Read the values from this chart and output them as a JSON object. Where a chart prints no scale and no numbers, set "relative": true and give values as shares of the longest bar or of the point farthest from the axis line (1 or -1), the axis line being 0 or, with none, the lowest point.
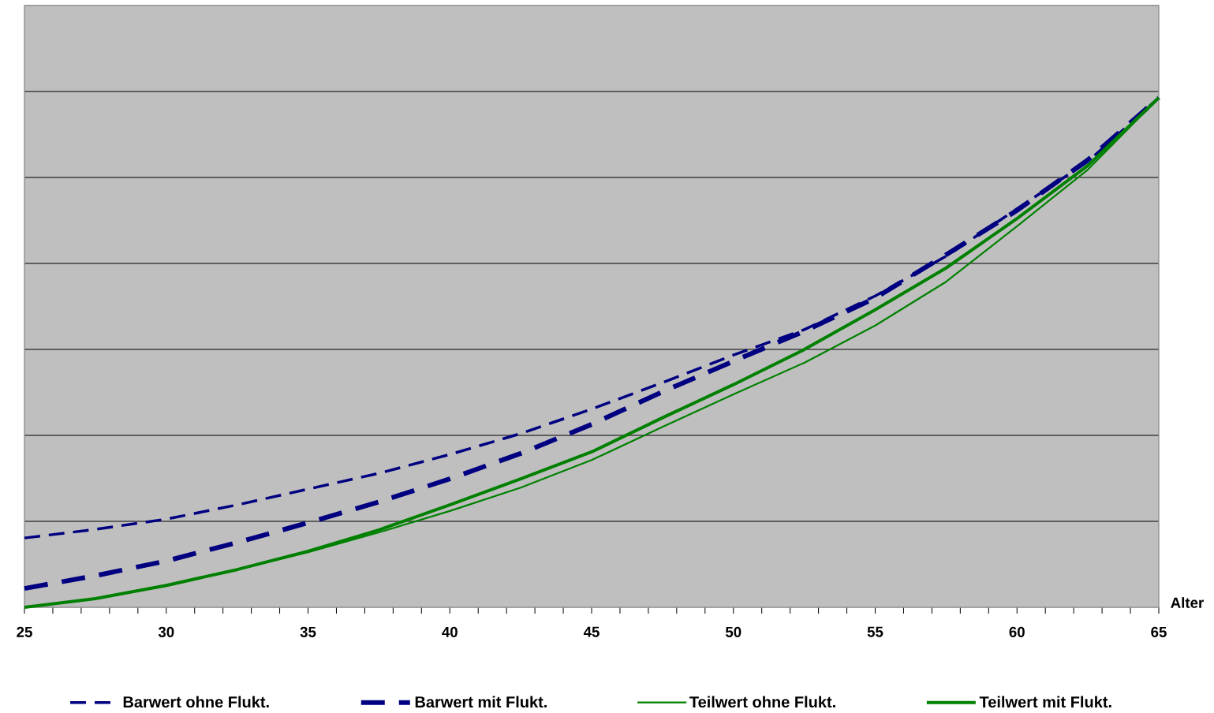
{
  "chart_data": {
    "type": "line",
    "relative": true,
    "xlabel": "Alter",
    "x": [
      25,
      27.5,
      30,
      32.5,
      35,
      37.5,
      40,
      42.5,
      45,
      47.5,
      50,
      52.5,
      55,
      57.5,
      60,
      62.5,
      65
    ],
    "xlim": [
      25,
      65
    ],
    "xticks": [
      25,
      {
        "value": 26,
        "label": null
      },
      {
        "value": 27,
        "label": null
      },
      {
        "value": 28,
        "label": null
      },
      {
        "value": 29,
        "label": null
      },
      30,
      {
        "value": 31,
        "label": null
      },
      {
        "value": 32,
        "label": null
      },
      {
        "value": 33,
        "label": null
      },
      {
        "value": 34,
        "label": null
      },
      35,
      {
        "value": 36,
        "label": null
      },
      {
        "value": 37,
        "label": null
      },
      {
        "value": 38,
        "label": null
      },
      {
        "value": 39,
        "label": null
      },
      40,
      {
        "value": 41,
        "label": null
      },
      {
        "value": 42,
        "label": null
      },
      {
        "value": 43,
        "label": null
      },
      {
        "value": 44,
        "label": null
      },
      45,
      {
        "value": 46,
        "label": null
      },
      {
        "value": 47,
        "label": null
      },
      {
        "value": 48,
        "label": null
      },
      {
        "value": 49,
        "label": null
      },
      50,
      {
        "value": 51,
        "label": null
      },
      {
        "value": 52,
        "label": null
      },
      {
        "value": 53,
        "label": null
      },
      {
        "value": 54,
        "label": null
      },
      55,
      {
        "value": 56,
        "label": null
      },
      {
        "value": 57,
        "label": null
      },
      {
        "value": 58,
        "label": null
      },
      {
        "value": 59,
        "label": null
      },
      60,
      {
        "value": 61,
        "label": null
      },
      {
        "value": 62,
        "label": null
      },
      {
        "value": 63,
        "label": null
      },
      {
        "value": 64,
        "label": null
      },
      65
    ],
    "grid": "y",
    "legend": "bottom",
    "marker": "none",
    "series": [
      {
        "name": "Barwert ohne Flukt.",
        "color": "#000080",
        "line_style": "dashed",
        "values": [
          0.136,
          0.153,
          0.173,
          0.201,
          0.232,
          0.263,
          0.3,
          0.341,
          0.389,
          0.441,
          0.495,
          0.545,
          0.611,
          0.689,
          0.782,
          0.875,
          1.0
        ]
      },
      {
        "name": "Barwert mit Flukt.",
        "color": "#000080",
        "line_style": "dashed",
        "values": [
          0.037,
          0.062,
          0.091,
          0.127,
          0.166,
          0.207,
          0.252,
          0.302,
          0.359,
          0.423,
          0.483,
          0.542,
          0.607,
          0.692,
          0.779,
          0.878,
          1.0
        ]
      },
      {
        "name": "Teilwert ohne Flukt.",
        "color": "#008000",
        "line_style": "solid",
        "values": [
          0.0,
          0.017,
          0.042,
          0.074,
          0.108,
          0.147,
          0.189,
          0.235,
          0.289,
          0.354,
          0.418,
          0.48,
          0.553,
          0.639,
          0.748,
          0.859,
          1.0
        ]
      },
      {
        "name": "Teilwert mit Flukt.",
        "color": "#008000",
        "line_style": "solid",
        "values": [
          0.0,
          0.017,
          0.043,
          0.074,
          0.11,
          0.152,
          0.201,
          0.252,
          0.305,
          0.372,
          0.437,
          0.506,
          0.584,
          0.666,
          0.763,
          0.867,
          1.0
        ]
      }
    ]
  }
}
